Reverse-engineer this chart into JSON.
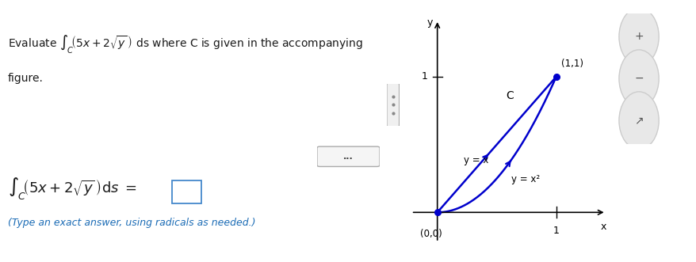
{
  "bg_color": "#ffffff",
  "teal_bar_color": "#2e8b9a",
  "text_color": "#1a1a1a",
  "blue_color": "#0000cc",
  "divider_color": "#aaaaaa",
  "hint_text_color": "#1a6bb5",
  "hint_text": "(Type an exact answer, using radicals as needed.)",
  "axis_x_label": "x",
  "axis_y_label": "y",
  "curve_C_label": "C",
  "label_yx": "y = x",
  "label_yx2": "y = x²",
  "point_00_label": "(0,0)",
  "point_11_label": "(1,1)",
  "tick_label_1": "1"
}
